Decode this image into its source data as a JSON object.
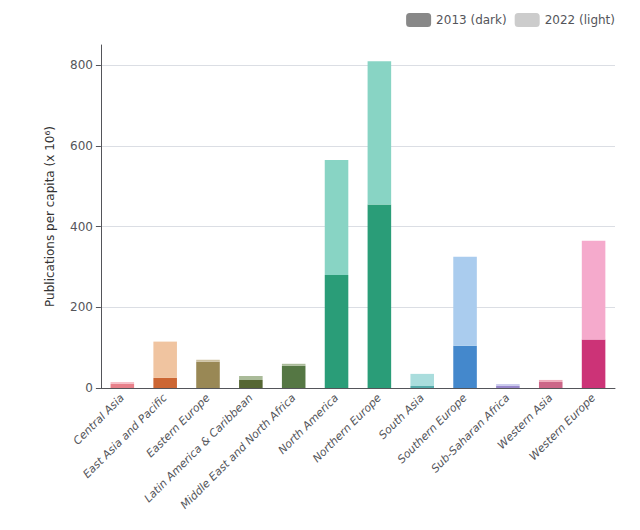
{
  "chart_data": {
    "type": "bar",
    "stacked": true,
    "categories": [
      "Central Asia",
      "East Asia and Pacific",
      "Eastern Europe",
      "Latin America & Caribbean",
      "Middle East and North Africa",
      "North America",
      "Northern Europe",
      "South Asia",
      "Southern Europe",
      "Sub-Saharan Africa",
      "Western Asia",
      "Western Europe"
    ],
    "series": [
      {
        "name": "2013 (dark)",
        "color": "#888888",
        "colors": [
          "#e8808a",
          "#cc6633",
          "#998855",
          "#556633",
          "#557744",
          "#2a9d78",
          "#2a9d78",
          "#55aaaa",
          "#4488cc",
          "#9988cc",
          "#cc6688",
          "#cc3377"
        ],
        "values": [
          10,
          25,
          65,
          20,
          55,
          280,
          455,
          5,
          105,
          5,
          15,
          120
        ]
      },
      {
        "name": "2022 (light)",
        "color": "#cccccc",
        "colors": [
          "#f5c0c8",
          "#f0c4a0",
          "#ccc0a0",
          "#aabb99",
          "#aabb99",
          "#88d4c4",
          "#88d4c4",
          "#aadddd",
          "#aaccee",
          "#ccccee",
          "#eeaabb",
          "#f5aacc"
        ],
        "values": [
          5,
          90,
          5,
          10,
          5,
          285,
          355,
          30,
          220,
          5,
          5,
          245
        ]
      }
    ],
    "ylabel": "Publications per capita (x 10⁶)",
    "ylim": [
      0,
      850
    ],
    "yticks": [
      0,
      200,
      400,
      600,
      800
    ],
    "grid": true,
    "legend": "upper right"
  }
}
